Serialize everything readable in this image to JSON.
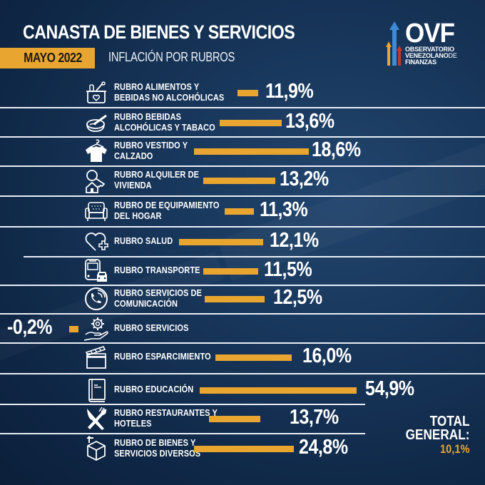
{
  "header": {
    "title": "CANASTA DE BIENES Y SERVICIOS",
    "date": "MAYO 2022",
    "subtitle": "INFLACIÓN POR RUBROS"
  },
  "logo": {
    "acronym": "OVF",
    "line1": "OBSERVATORIO",
    "line2a": "VENEZOLANO",
    "line2b": "DE",
    "line3": "FINANZAS"
  },
  "colors": {
    "accent": "#e8a630",
    "background": "#153258",
    "text": "#ffffff"
  },
  "total": {
    "label1": "TOTAL",
    "label2": "GENERAL:",
    "value": "10,1%"
  },
  "chart_data": {
    "type": "bar",
    "orientation": "horizontal",
    "title": "CANASTA DE BIENES Y SERVICIOS — INFLACIÓN POR RUBROS (MAYO 2022)",
    "unit": "%",
    "categories": [
      "RUBRO ALIMENTOS Y BEBIDAS NO ALCOHÓLICAS",
      "RUBRO BEBIDAS ALCOHÓLICAS Y TABACO",
      "RUBRO VESTIDO Y CALZADO",
      "RUBRO ALQUILER DE VIVIENDA",
      "RUBRO DE EQUIPAMIENTO DEL HOGAR",
      "RUBRO SALUD",
      "RUBRO TRANSPORTE",
      "RUBRO SERVICIOS DE COMUNICACIÓN",
      "RUBRO SERVICIOS",
      "RUBRO ESPARCIMIENTO",
      "RUBRO EDUCACIÓN",
      "RUBRO RESTAURANTES Y HOTELES",
      "RUBRO DE BIENES Y SERVICIOS DIVERSOS"
    ],
    "values": [
      11.9,
      13.6,
      18.6,
      13.2,
      11.3,
      12.1,
      11.5,
      12.5,
      -0.2,
      16.0,
      54.9,
      13.7,
      24.8
    ],
    "total_general": 10.1,
    "legend": "none",
    "grid": false
  },
  "rows": [
    {
      "line1": "RUBRO ALIMENTOS Y",
      "line2": "BEBIDAS NO ALCOHÓLICAS",
      "value": "11,9%",
      "icon": "grocery-basket-icon"
    },
    {
      "line1": "RUBRO BEBIDAS",
      "line2": "ALCOHÓLICAS Y TABACO",
      "value": "13,6%",
      "icon": "ashtray-icon"
    },
    {
      "line1": "RUBRO VESTIDO Y",
      "line2": "CALZADO",
      "value": "18,6%",
      "icon": "shirt-hanger-icon"
    },
    {
      "line1": "RUBRO ALQUILER DE",
      "line2": "VIVIENDA",
      "value": "13,2%",
      "icon": "house-key-icon"
    },
    {
      "line1": "RUBRO DE EQUIPAMIENTO",
      "line2": "DEL HOGAR",
      "value": "11,3%",
      "icon": "armchair-icon"
    },
    {
      "line1": "RUBRO SALUD",
      "line2": "",
      "value": "12,1%",
      "icon": "heart-plus-icon"
    },
    {
      "line1": "RUBRO TRANSPORTE",
      "line2": "",
      "value": "11,5%",
      "icon": "bus-car-icon"
    },
    {
      "line1": "RUBRO SERVICIOS DE",
      "line2": "COMUNICACIÓN",
      "value": "12,5%",
      "icon": "phone-call-icon"
    },
    {
      "line1": "RUBRO SERVICIOS",
      "line2": "",
      "value": "-0,2%",
      "icon": "gear-hand-icon"
    },
    {
      "line1": "RUBRO ESPARCIMIENTO",
      "line2": "",
      "value": "16,0%",
      "icon": "clapperboard-icon"
    },
    {
      "line1": "RUBRO EDUCACIÓN",
      "line2": "",
      "value": "54,9%",
      "icon": "book-icon"
    },
    {
      "line1": "RUBRO RESTAURANTES Y",
      "line2": "HOTELES",
      "value": "13,7%",
      "icon": "knife-fork-icon"
    },
    {
      "line1": "RUBRO DE BIENES Y",
      "line2": "SERVICIOS DIVERSOS",
      "value": "24,8%",
      "icon": "package-box-icon"
    }
  ]
}
